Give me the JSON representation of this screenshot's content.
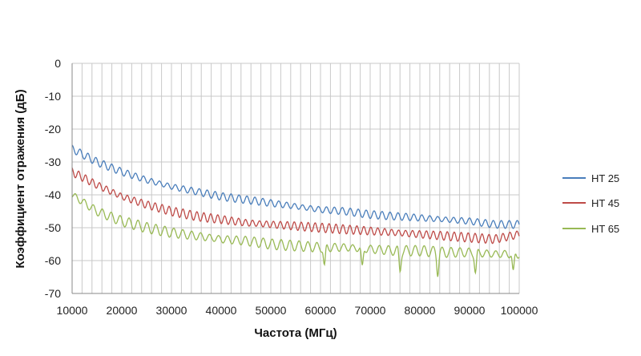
{
  "chart_data": {
    "type": "line",
    "title": "",
    "xlabel": "Частота (МГц)",
    "ylabel": "Коэффициент отражения (дБ)",
    "xlim": [
      10000,
      100000
    ],
    "ylim": [
      -70,
      0
    ],
    "x_ticks": [
      10000,
      20000,
      30000,
      40000,
      50000,
      60000,
      70000,
      80000,
      90000,
      100000
    ],
    "y_ticks": [
      0,
      -10,
      -20,
      -30,
      -40,
      -50,
      -60,
      -70
    ],
    "grid": true,
    "minor_x_grid_step": 2000,
    "legend_position": "right",
    "series": [
      {
        "name": "HT 25",
        "color": "#4a7ebb",
        "x": [
          10000,
          15000,
          20000,
          25000,
          30000,
          35000,
          40000,
          45000,
          50000,
          55000,
          60000,
          65000,
          70000,
          75000,
          80000,
          85000,
          90000,
          95000,
          100000
        ],
        "values": [
          -26,
          -30,
          -33,
          -35.5,
          -37.5,
          -39,
          -40.5,
          -41.5,
          -42.5,
          -43.5,
          -44.5,
          -45,
          -46,
          -46.5,
          -47,
          -47.5,
          -48,
          -49,
          -49
        ]
      },
      {
        "name": "HT 45",
        "color": "#be4b48",
        "x": [
          10000,
          15000,
          20000,
          25000,
          30000,
          35000,
          40000,
          45000,
          50000,
          55000,
          60000,
          65000,
          70000,
          75000,
          80000,
          85000,
          90000,
          95000,
          100000
        ],
        "values": [
          -33,
          -37,
          -40.5,
          -43,
          -45,
          -46.5,
          -47.5,
          -48.5,
          -49,
          -49.5,
          -50,
          -50.5,
          -51,
          -51.5,
          -52,
          -52.5,
          -53,
          -53.5,
          -52
        ]
      },
      {
        "name": "HT 65",
        "color": "#98b954",
        "x": [
          10000,
          15000,
          20000,
          25000,
          30000,
          35000,
          40000,
          45000,
          50000,
          55000,
          60000,
          65000,
          70000,
          75000,
          80000,
          85000,
          90000,
          95000,
          100000
        ],
        "values": [
          -40,
          -45,
          -48,
          -50,
          -51.5,
          -52.5,
          -53.5,
          -54,
          -55,
          -55.5,
          -56,
          -56,
          -56.5,
          -57,
          -57,
          -57.5,
          -57.5,
          -58,
          -58
        ]
      }
    ]
  }
}
